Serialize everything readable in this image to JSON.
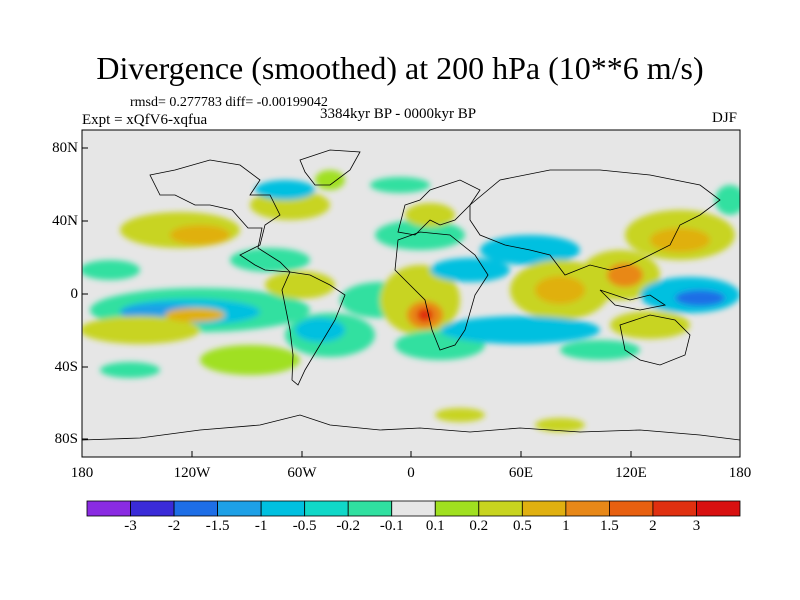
{
  "title": "Divergence (smoothed) at 200 hPa (10**6 m/s)",
  "stats": "rmsd= 0.277783 diff= -0.00199042",
  "experiment": "Expt = xQfV6-xqfua",
  "period": "3384kyr BP - 0000kyr BP",
  "season": "DJF",
  "map": {
    "background": "#e6e6e6",
    "lat_ticks": [
      "80N",
      "40N",
      "0",
      "40S",
      "80S"
    ],
    "lon_ticks": [
      "180",
      "120W",
      "60W",
      "0",
      "60E",
      "120E",
      "180"
    ]
  },
  "colorbar": {
    "labels": [
      "-3",
      "-2",
      "-1.5",
      "-1",
      "-0.5",
      "-0.2",
      "-0.1",
      "0.1",
      "0.2",
      "0.5",
      "1",
      "1.5",
      "2",
      "3"
    ],
    "colors": [
      "#8a2be2",
      "#3a2bd8",
      "#1e6ee6",
      "#1ea0e6",
      "#00c0e0",
      "#10d8c8",
      "#30e0a0",
      "#e6e6e6",
      "#a0e020",
      "#c8d420",
      "#e0b010",
      "#e88818",
      "#e86010",
      "#e03010",
      "#d81010"
    ]
  }
}
